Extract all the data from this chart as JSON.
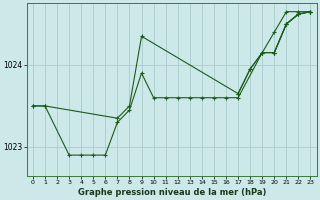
{
  "xlabel": "Graphe pression niveau de la mer (hPa)",
  "background_color": "#cce8e8",
  "grid_color": "#aacccc",
  "line_color": "#1a5c1a",
  "ylim": [
    1022.65,
    1024.75
  ],
  "yticks": [
    1023.0,
    1024.0
  ],
  "xlim": [
    -0.5,
    23.5
  ],
  "xticks": [
    0,
    1,
    2,
    3,
    4,
    5,
    6,
    7,
    8,
    9,
    10,
    11,
    12,
    13,
    14,
    15,
    16,
    17,
    18,
    19,
    20,
    21,
    22,
    23
  ],
  "series": [
    {
      "x": [
        0,
        1,
        3,
        4,
        5,
        6,
        7,
        8,
        9,
        10,
        11,
        12,
        13,
        14,
        15,
        16,
        17,
        19,
        20,
        21,
        22,
        23
      ],
      "y": [
        1023.5,
        1023.5,
        1022.9,
        1022.9,
        1022.9,
        1022.9,
        1023.3,
        1023.45,
        1023.9,
        1023.6,
        1023.6,
        1023.6,
        1023.6,
        1023.6,
        1023.6,
        1023.6,
        1023.6,
        1024.15,
        1024.4,
        1024.65,
        1024.65,
        1024.65
      ]
    },
    {
      "x": [
        0,
        1,
        7,
        8,
        9,
        17,
        18,
        19,
        20,
        21,
        22,
        23
      ],
      "y": [
        1023.5,
        1023.5,
        1023.35,
        1023.5,
        1024.35,
        1023.65,
        1023.95,
        1024.15,
        1024.15,
        1024.5,
        1024.62,
        1024.65
      ]
    },
    {
      "x": [
        17,
        18,
        19,
        20,
        21,
        22,
        23
      ],
      "y": [
        1023.65,
        1023.95,
        1024.15,
        1024.15,
        1024.5,
        1024.62,
        1024.65
      ]
    },
    {
      "x": [
        20,
        21,
        22,
        23
      ],
      "y": [
        1024.15,
        1024.5,
        1024.62,
        1024.65
      ]
    }
  ]
}
